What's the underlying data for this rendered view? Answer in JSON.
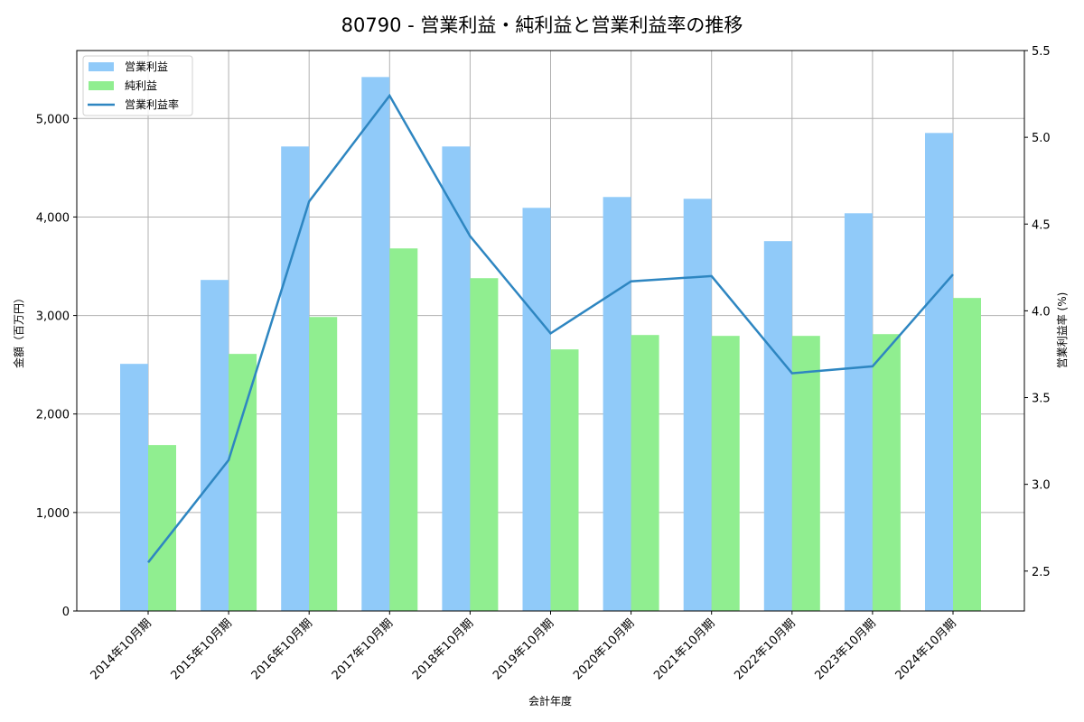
{
  "title": "80790 - 営業利益・純利益と営業利益率の推移",
  "colors": {
    "operating_profit": "#90CAF9",
    "net_profit": "#90EE90",
    "operating_margin": "#2E86C1"
  },
  "chart_data": {
    "type": "bar",
    "title": "80790 - 営業利益・純利益と営業利益率の推移",
    "xlabel": "会計年度",
    "ylabel": "金額（百万円）",
    "y2label": "営業利益率 (%)",
    "categories": [
      "2014年10月期",
      "2015年10月期",
      "2016年10月期",
      "2017年10月期",
      "2018年10月期",
      "2019年10月期",
      "2020年10月期",
      "2021年10月期",
      "2022年10月期",
      "2023年10月期",
      "2024年10月期"
    ],
    "series": [
      {
        "name": "営業利益",
        "type": "bar",
        "axis": "left",
        "values": [
          2509,
          3361,
          4716,
          5421,
          4716,
          4093,
          4203,
          4185,
          3755,
          4038,
          4853
        ]
      },
      {
        "name": "純利益",
        "type": "bar",
        "axis": "left",
        "values": [
          1685,
          2610,
          2985,
          3681,
          3379,
          2656,
          2802,
          2793,
          2793,
          2811,
          3178
        ]
      },
      {
        "name": "営業利益率",
        "type": "line",
        "axis": "right",
        "values": [
          2.55,
          3.14,
          4.63,
          5.24,
          4.43,
          3.87,
          4.17,
          4.2,
          3.64,
          3.68,
          4.21
        ]
      }
    ],
    "ylim": [
      0,
      5690
    ],
    "y2lim": [
      2.27,
      5.5
    ],
    "yticks": [
      "0",
      "1,000",
      "2,000",
      "3,000",
      "4,000",
      "5,000"
    ],
    "y2ticks": [
      "2.5",
      "3.0",
      "3.5",
      "4.0",
      "4.5",
      "5.0",
      "5.5"
    ],
    "grid": true,
    "legend_position": "upper left"
  }
}
